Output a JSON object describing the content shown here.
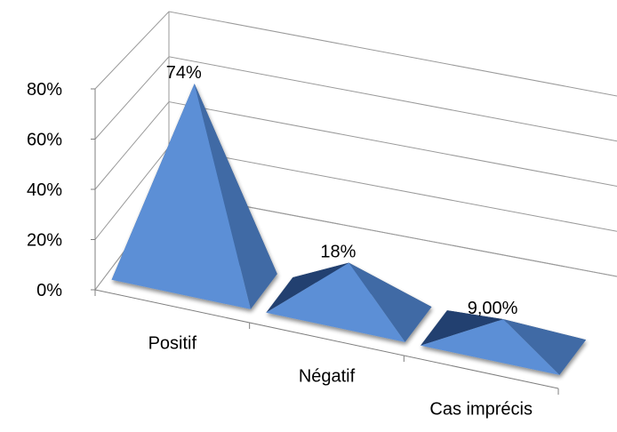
{
  "chart_data": {
    "type": "bar",
    "bar_shape": "pyramid",
    "projection": "3d-perspective",
    "categories": [
      "Positif",
      "Négatif",
      "Cas imprécis"
    ],
    "values": [
      74,
      18,
      9
    ],
    "data_labels": [
      "74%",
      "18%",
      "9,00%"
    ],
    "ylim": [
      0,
      80
    ],
    "yticks": [
      0,
      20,
      40,
      60,
      80
    ],
    "ytick_labels": [
      "0%",
      "20%",
      "40%",
      "60%",
      "80%"
    ],
    "title": "",
    "xlabel": "",
    "ylabel": "",
    "grid": true,
    "legend": "none",
    "colors": {
      "face_front": "#5b8fd6",
      "face_side": "#3f6aa5",
      "face_back": "#23406f",
      "grid": "#9a9a9a",
      "axis": "#7f7f7f"
    }
  }
}
